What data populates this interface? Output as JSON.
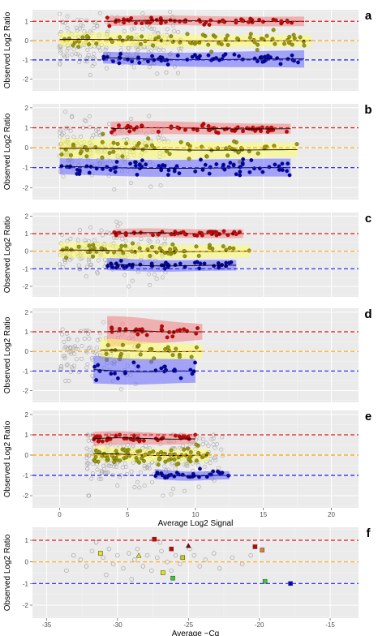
{
  "chart_data": [
    {
      "id": "a",
      "type": "scatter",
      "panel_label": "a",
      "ylabel": "Observed Log2 Ratio",
      "xlabel": "",
      "xlim": [
        -2,
        22
      ],
      "ylim": [
        -2.6,
        1.6
      ],
      "xticks": [],
      "yticks": [
        -2,
        -1,
        0,
        1
      ],
      "reference_lines": [
        {
          "y": 1,
          "color": "#e41a1c"
        },
        {
          "y": 0,
          "color": "#ffa500"
        },
        {
          "y": -1,
          "color": "#1a1aff"
        }
      ],
      "series": [
        {
          "color": "#cc0000",
          "fill": "#f08080",
          "x_range": [
            3.5,
            18
          ],
          "level": 1.0,
          "spread": 0.07,
          "n": 60,
          "band_start": 0.25,
          "band_end": 0.25
        },
        {
          "color": "#999900",
          "fill": "#ffff66",
          "x_range": [
            0,
            18.5
          ],
          "level": 0.0,
          "spread": 0.2,
          "n": 70,
          "band_start": 0.35,
          "band_end": 0.3
        },
        {
          "color": "#0000aa",
          "fill": "#6666ff",
          "x_range": [
            3.2,
            18
          ],
          "level": -0.95,
          "spread": 0.12,
          "n": 60,
          "band_start": 0.3,
          "band_end": 0.45
        }
      ],
      "background_points": {
        "x_range": [
          0,
          9
        ],
        "y_range": [
          -2,
          1.5
        ],
        "n": 220
      }
    },
    {
      "id": "b",
      "type": "scatter",
      "panel_label": "b",
      "ylabel": "Observed Log2 Ratio",
      "xlabel": "",
      "xlim": [
        -2,
        22
      ],
      "ylim": [
        -2.6,
        2.2
      ],
      "xticks": [],
      "yticks": [
        -2,
        -1,
        0,
        1,
        2
      ],
      "reference_lines": [
        {
          "y": 1,
          "color": "#e41a1c"
        },
        {
          "y": 0,
          "color": "#ffa500"
        },
        {
          "y": -1,
          "color": "#1a1aff"
        }
      ],
      "series": [
        {
          "color": "#cc0000",
          "fill": "#f08080",
          "x_range": [
            3.8,
            17
          ],
          "level": 0.95,
          "spread": 0.1,
          "n": 55,
          "band_start": 0.35,
          "band_end": 0.25
        },
        {
          "color": "#999900",
          "fill": "#ffff66",
          "x_range": [
            0,
            17.5
          ],
          "level": -0.1,
          "spread": 0.25,
          "n": 60,
          "band_start": 0.5,
          "band_end": 0.35
        },
        {
          "color": "#0000aa",
          "fill": "#6666ff",
          "x_range": [
            0,
            17
          ],
          "level": -1.0,
          "spread": 0.18,
          "n": 80,
          "band_start": 0.4,
          "band_end": 0.45
        }
      ],
      "background_points": {
        "x_range": [
          0,
          8
        ],
        "y_range": [
          -2.2,
          1.8
        ],
        "n": 200
      }
    },
    {
      "id": "c",
      "type": "scatter",
      "panel_label": "c",
      "ylabel": "Observed Log2 Ratio",
      "xlabel": "",
      "xlim": [
        -2,
        22
      ],
      "ylim": [
        -2.6,
        2.2
      ],
      "xticks": [],
      "yticks": [
        -2,
        -1,
        0,
        1,
        2
      ],
      "reference_lines": [
        {
          "y": 1,
          "color": "#e41a1c"
        },
        {
          "y": 0,
          "color": "#ffa500"
        },
        {
          "y": -1,
          "color": "#1a1aff"
        }
      ],
      "series": [
        {
          "color": "#cc0000",
          "fill": "#f08080",
          "x_range": [
            4,
            13.5
          ],
          "level": 1.0,
          "spread": 0.08,
          "n": 45,
          "band_start": 0.25,
          "band_end": 0.25
        },
        {
          "color": "#999900",
          "fill": "#ffff66",
          "x_range": [
            0,
            14
          ],
          "level": 0.0,
          "spread": 0.2,
          "n": 55,
          "band_start": 0.45,
          "band_end": 0.35
        },
        {
          "color": "#0000aa",
          "fill": "#6666ff",
          "x_range": [
            3.5,
            13
          ],
          "level": -0.8,
          "spread": 0.12,
          "n": 45,
          "band_start": 0.35,
          "band_end": 0.3
        }
      ],
      "background_points": {
        "x_range": [
          0,
          8
        ],
        "y_range": [
          -2,
          1.8
        ],
        "n": 170
      }
    },
    {
      "id": "d",
      "type": "scatter",
      "panel_label": "d",
      "ylabel": "Observed Log2 Ratio",
      "xlabel": "",
      "xlim": [
        -2,
        22
      ],
      "ylim": [
        -2.6,
        2.2
      ],
      "xticks": [],
      "yticks": [
        -2,
        -1,
        0,
        1,
        2
      ],
      "reference_lines": [
        {
          "y": 1,
          "color": "#e41a1c"
        },
        {
          "y": 0,
          "color": "#ffa500"
        },
        {
          "y": -1,
          "color": "#1a1aff"
        }
      ],
      "series": [
        {
          "color": "#cc0000",
          "fill": "#f08080",
          "x_range": [
            3.5,
            10.5
          ],
          "level": 1.0,
          "spread": 0.15,
          "n": 25,
          "band_start": 0.8,
          "band_end": 0.4
        },
        {
          "color": "#999900",
          "fill": "#ffff66",
          "x_range": [
            3,
            10.5
          ],
          "level": 0.0,
          "spread": 0.25,
          "n": 25,
          "band_start": 0.6,
          "band_end": 0.35
        },
        {
          "color": "#0000aa",
          "fill": "#6666ff",
          "x_range": [
            2.5,
            10
          ],
          "level": -1.0,
          "spread": 0.2,
          "n": 25,
          "band_start": 0.7,
          "band_end": 0.6
        }
      ],
      "background_points": {
        "x_range": [
          0,
          6
        ],
        "y_range": [
          -2,
          1.5
        ],
        "n": 120
      }
    },
    {
      "id": "e",
      "type": "scatter",
      "panel_label": "e",
      "ylabel": "Observed Log2 Ratio",
      "xlabel": "Average Log2 Signal",
      "xlim": [
        -2,
        22
      ],
      "ylim": [
        -2.6,
        2.2
      ],
      "xticks": [
        0,
        5,
        10,
        15,
        20
      ],
      "yticks": [
        -2,
        -1,
        0,
        1,
        2
      ],
      "reference_lines": [
        {
          "y": 1,
          "color": "#e41a1c"
        },
        {
          "y": 0,
          "color": "#ffa500"
        },
        {
          "y": -1,
          "color": "#1a1aff"
        }
      ],
      "series": [
        {
          "color": "#cc0000",
          "fill": "#f08080",
          "x_range": [
            2.5,
            10
          ],
          "level": 0.8,
          "spread": 0.1,
          "n": 40,
          "band_start": 0.35,
          "band_end": 0.25
        },
        {
          "color": "#999900",
          "fill": "#ffff66",
          "x_range": [
            2.5,
            11
          ],
          "level": 0.0,
          "spread": 0.2,
          "n": 80,
          "band_start": 0.35,
          "band_end": 0.3
        },
        {
          "color": "#0000aa",
          "fill": "#6666ff",
          "x_range": [
            7,
            12.5
          ],
          "level": -1.0,
          "spread": 0.12,
          "n": 30,
          "band_start": 0.25,
          "band_end": 0.2
        }
      ],
      "background_points": {
        "x_range": [
          2,
          12
        ],
        "y_range": [
          -2,
          1
        ],
        "n": 230
      }
    },
    {
      "id": "f",
      "type": "scatter",
      "panel_label": "f",
      "ylabel": "Observed Log2 Ratio",
      "xlabel": "Average −Cq",
      "xlim": [
        -36,
        -13
      ],
      "ylim": [
        -2.6,
        1.6
      ],
      "xticks": [
        -35,
        -30,
        -25,
        -20,
        -15
      ],
      "xtick_labels": [
        "-35",
        "-30",
        "-25",
        "-20",
        "-15"
      ],
      "yticks": [
        -2,
        -1,
        0,
        1
      ],
      "reference_lines": [
        {
          "y": 1,
          "color": "#e41a1c"
        },
        {
          "y": 0,
          "color": "#ffa500"
        },
        {
          "y": -1,
          "color": "#1a1aff"
        }
      ],
      "markers": [
        {
          "x": -27.4,
          "y": 1.05,
          "shape": "square",
          "color": "#cc0000"
        },
        {
          "x": -26.2,
          "y": 0.6,
          "shape": "square",
          "color": "#cc0000"
        },
        {
          "x": -25.0,
          "y": 0.75,
          "shape": "triangle",
          "color": "#8b0000"
        },
        {
          "x": -20.3,
          "y": 0.7,
          "shape": "square",
          "color": "#cc0000"
        },
        {
          "x": -19.8,
          "y": 0.55,
          "shape": "square",
          "color": "#e07b39"
        },
        {
          "x": -31.2,
          "y": 0.4,
          "shape": "square",
          "color": "#e6e600"
        },
        {
          "x": -28.5,
          "y": 0.3,
          "shape": "triangle",
          "color": "#e6e600"
        },
        {
          "x": -25.4,
          "y": 0.2,
          "shape": "square",
          "color": "#cccc00"
        },
        {
          "x": -26.8,
          "y": -0.5,
          "shape": "square",
          "color": "#e6e600"
        },
        {
          "x": -26.1,
          "y": -0.75,
          "shape": "square",
          "color": "#33cc33"
        },
        {
          "x": -19.6,
          "y": -0.9,
          "shape": "square",
          "color": "#33cc33"
        },
        {
          "x": -17.8,
          "y": -1.0,
          "shape": "square",
          "color": "#0000cc"
        }
      ],
      "open_points": [
        [
          -33.1,
          0.3
        ],
        [
          -32.6,
          0.1
        ],
        [
          -32.2,
          -0.2
        ],
        [
          -31.8,
          0.5
        ],
        [
          -31.5,
          0.9
        ],
        [
          -31.0,
          0.2
        ],
        [
          -30.6,
          0.6
        ],
        [
          -30.3,
          -0.1
        ],
        [
          -30.0,
          0.3
        ],
        [
          -29.6,
          -0.3
        ],
        [
          -29.2,
          0.4
        ],
        [
          -28.8,
          0.1
        ],
        [
          -28.6,
          0.6
        ],
        [
          -28.2,
          -0.2
        ],
        [
          -27.9,
          0.3
        ],
        [
          -27.6,
          -0.4
        ],
        [
          -27.2,
          0.2
        ],
        [
          -26.9,
          0.5
        ],
        [
          -26.5,
          0.0
        ],
        [
          -26.2,
          -0.4
        ],
        [
          -25.9,
          0.3
        ],
        [
          -25.6,
          -0.1
        ],
        [
          -24.6,
          0.3
        ],
        [
          -24.2,
          -0.2
        ],
        [
          -23.8,
          0.1
        ],
        [
          -23.2,
          0.4
        ],
        [
          -22.8,
          -0.3
        ],
        [
          -21.9,
          0.2
        ],
        [
          -21.2,
          -0.1
        ],
        [
          -20.6,
          0.3
        ],
        [
          -33.6,
          -0.4
        ],
        [
          -30.8,
          -0.6
        ],
        [
          -29.0,
          -0.8
        ],
        [
          -27.0,
          0.9
        ],
        [
          -24.9,
          0.6
        ]
      ]
    }
  ]
}
